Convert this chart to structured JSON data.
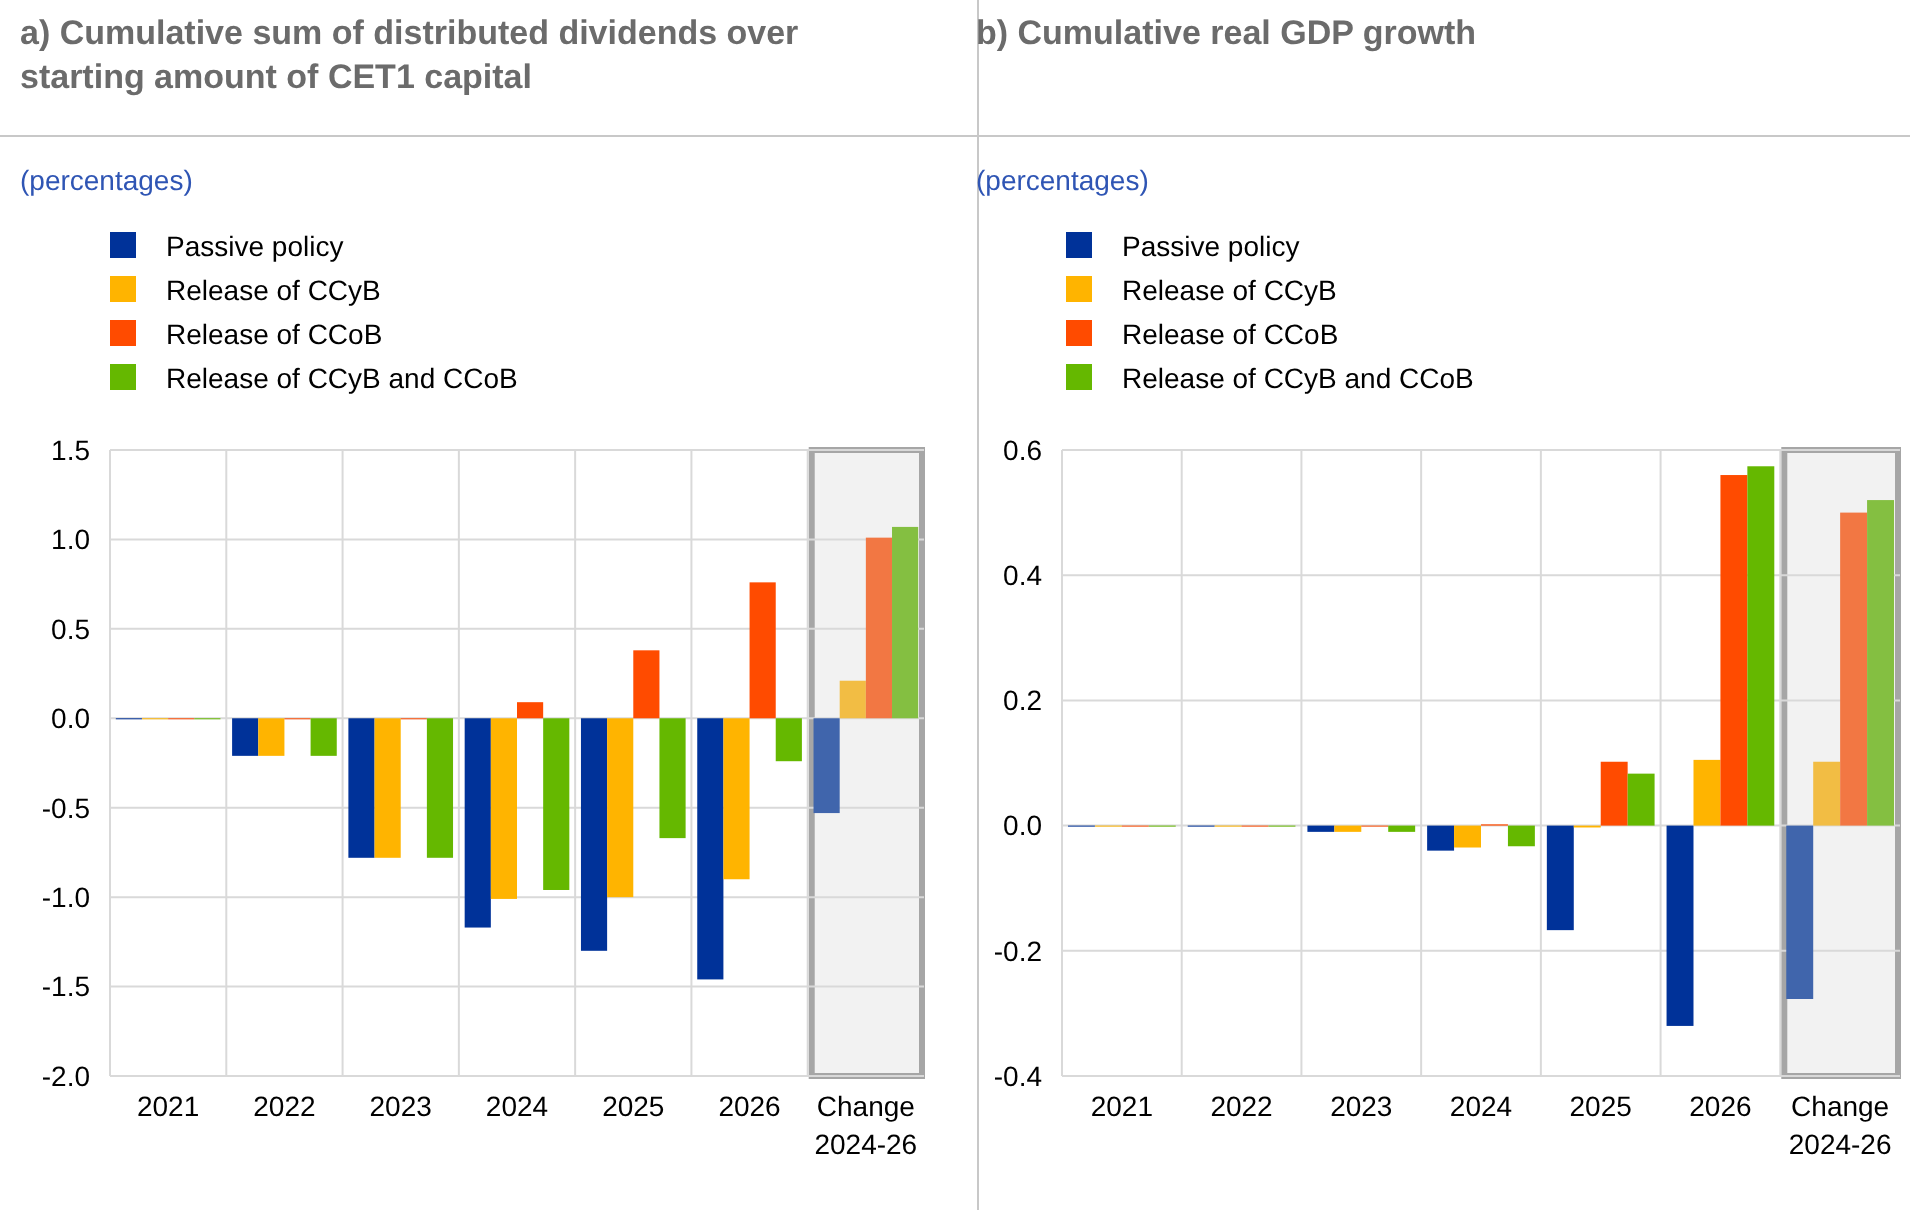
{
  "chart_data": [
    {
      "type": "bar",
      "title": "a) Cumulative sum of distributed dividends over starting amount of CET1 capital",
      "subtitle": "(percentages)",
      "categories": [
        "2021",
        "2022",
        "2023",
        "2024",
        "2025",
        "2026",
        "Change 2024-26"
      ],
      "series": [
        {
          "name": "Passive policy",
          "color": "#003299",
          "colors": [
            "#003299",
            "#003299",
            "#003299",
            "#003299",
            "#003299",
            "#003299",
            "#4065ac"
          ],
          "values": [
            0,
            -0.21,
            -0.78,
            -1.17,
            -1.3,
            -1.46,
            -0.53
          ]
        },
        {
          "name": "Release of CCyB",
          "color": "#ffb400",
          "colors": [
            "#ffb400",
            "#ffb400",
            "#ffb400",
            "#ffb400",
            "#ffb400",
            "#ffb400",
            "#f2bd44"
          ],
          "values": [
            0,
            -0.21,
            -0.78,
            -1.01,
            -1.0,
            -0.9,
            0.21
          ]
        },
        {
          "name": "Release of CCoB",
          "color": "#ff4b00",
          "colors": [
            "#ff4b00",
            "#ff4b00",
            "#ff4b00",
            "#ff4b00",
            "#ff4b00",
            "#ff4b00",
            "#f27743"
          ],
          "values": [
            0,
            0,
            0,
            0.09,
            0.38,
            0.76,
            1.01
          ]
        },
        {
          "name": "Release of CCyB and CCoB",
          "color": "#65b800",
          "colors": [
            "#65b800",
            "#65b800",
            "#65b800",
            "#65b800",
            "#65b800",
            "#65b800",
            "#84bf41"
          ],
          "values": [
            0,
            -0.21,
            -0.78,
            -0.96,
            -0.67,
            -0.24,
            1.07
          ]
        }
      ],
      "ylim": [
        -2,
        1.5
      ],
      "yticks": [
        {
          "value": -2,
          "label": "-2.0"
        },
        {
          "value": -1.5,
          "label": "-1.5"
        },
        {
          "value": -1,
          "label": "-1.0"
        },
        {
          "value": -0.5,
          "label": "-0.5"
        },
        {
          "value": 0,
          "label": "0.0"
        },
        {
          "value": 0.5,
          "label": "0.5"
        },
        {
          "value": 1,
          "label": "1.0"
        },
        {
          "value": 1.5,
          "label": "1.5"
        }
      ],
      "bands": [
        {
          "axis": "x",
          "from": "Change 2024-26",
          "to": "Change 2024-26",
          "color": "#f2f2f2"
        }
      ],
      "grid": true,
      "legend": "top left"
    },
    {
      "type": "bar",
      "title": "b) Cumulative real GDP growth",
      "subtitle": "(percentages)",
      "categories": [
        "2021",
        "2022",
        "2023",
        "2024",
        "2025",
        "2026",
        "Change 2024-26"
      ],
      "series": [
        {
          "name": "Passive policy",
          "color": "#003299",
          "colors": [
            "#003299",
            "#003299",
            "#003299",
            "#003299",
            "#003299",
            "#003299",
            "#4065ac"
          ],
          "values": [
            0,
            0,
            -0.01,
            -0.04,
            -0.167,
            -0.32,
            -0.277
          ]
        },
        {
          "name": "Release of CCyB",
          "color": "#ffb400",
          "colors": [
            "#ffb400",
            "#ffb400",
            "#ffb400",
            "#ffb400",
            "#ffb400",
            "#ffb400",
            "#f2bd44"
          ],
          "values": [
            0,
            0,
            -0.01,
            -0.035,
            -0.003,
            0.105,
            0.102
          ]
        },
        {
          "name": "Release of CCoB",
          "color": "#ff4b00",
          "colors": [
            "#ff4b00",
            "#ff4b00",
            "#ff4b00",
            "#ff4b00",
            "#ff4b00",
            "#ff4b00",
            "#f27743"
          ],
          "values": [
            0,
            0,
            0,
            0.002,
            0.102,
            0.56,
            0.5
          ]
        },
        {
          "name": "Release of CCyB and CCoB",
          "color": "#65b800",
          "colors": [
            "#65b800",
            "#65b800",
            "#65b800",
            "#65b800",
            "#65b800",
            "#65b800",
            "#84bf41"
          ],
          "values": [
            0,
            0,
            -0.01,
            -0.033,
            0.083,
            0.574,
            0.52
          ]
        }
      ],
      "ylim": [
        -0.4,
        0.6
      ],
      "yticks": [
        {
          "value": -0.4,
          "label": "-0.4"
        },
        {
          "value": -0.2,
          "label": "-0.2"
        },
        {
          "value": 0,
          "label": "0.0"
        },
        {
          "value": 0.2,
          "label": "0.2"
        },
        {
          "value": 0.4,
          "label": "0.4"
        },
        {
          "value": 0.6,
          "label": "0.6"
        }
      ],
      "bands": [
        {
          "axis": "x",
          "from": "Change 2024-26",
          "to": "Change 2024-26",
          "color": "#f2f2f2"
        }
      ],
      "grid": true,
      "legend": "top left"
    }
  ]
}
